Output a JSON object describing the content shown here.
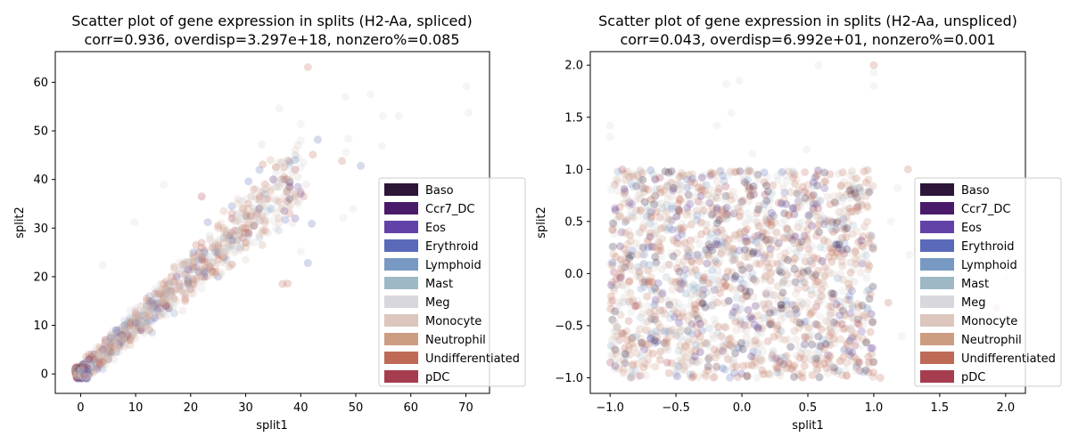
{
  "chart_data": [
    {
      "type": "scatter",
      "title_line1": "Scatter plot of gene expression in splits (H2-Aa, spliced)",
      "title_line2": "corr=0.936, overdisp=3.297e+18, nonzero%=0.085",
      "xlabel": "split1",
      "ylabel": "split2",
      "xlim": [
        -4.6,
        74.3
      ],
      "ylim": [
        -4.0,
        66.3
      ],
      "xticks": [
        0,
        10,
        20,
        30,
        40,
        50,
        60,
        70
      ],
      "yticks": [
        0,
        10,
        20,
        30,
        40,
        50,
        60
      ],
      "tick_labels_x": [
        "0",
        "10",
        "20",
        "30",
        "40",
        "50",
        "60",
        "70"
      ],
      "tick_labels_y": [
        "0",
        "10",
        "20",
        "30",
        "40",
        "50",
        "60"
      ],
      "grid": false,
      "legend_placement": "right",
      "point_alpha": 0.25,
      "pattern": "diagonal-cloud",
      "points": [
        [
          41.3,
          63.1,
          9
        ],
        [
          70.1,
          59.2,
          6
        ],
        [
          52.7,
          57.5,
          6
        ],
        [
          48.1,
          57.0,
          6
        ],
        [
          54.9,
          53.1,
          6
        ],
        [
          57.8,
          53.1,
          6
        ],
        [
          70.5,
          53.7,
          6
        ],
        [
          36.1,
          54.6,
          6
        ],
        [
          43.1,
          48.2,
          3
        ],
        [
          50.9,
          42.8,
          3
        ],
        [
          41.3,
          22.8,
          3
        ],
        [
          42.0,
          30.9,
          3
        ],
        [
          37.2,
          31.7,
          3
        ],
        [
          30.5,
          39.6,
          3
        ],
        [
          23.1,
          31.2,
          3
        ],
        [
          32.9,
          47.2,
          7
        ],
        [
          37.8,
          43.9,
          9
        ],
        [
          42.2,
          45.1,
          9
        ],
        [
          33.1,
          43.1,
          9
        ],
        [
          47.5,
          43.8,
          9
        ],
        [
          54.8,
          46.9,
          6
        ],
        [
          48.2,
          45.6,
          6
        ],
        [
          48.7,
          48.4,
          6
        ],
        [
          40.0,
          51.4,
          6
        ],
        [
          40.0,
          25.2,
          6
        ],
        [
          49.5,
          34.0,
          6
        ],
        [
          47.7,
          32.1,
          6
        ],
        [
          37.6,
          18.6,
          9
        ],
        [
          36.7,
          18.5,
          9
        ],
        [
          15.1,
          38.9,
          6
        ],
        [
          9.8,
          31.2,
          6
        ],
        [
          22.0,
          36.5,
          10
        ],
        [
          4.0,
          22.3,
          6
        ]
      ],
      "cloud": {
        "n": 1100,
        "x_max": 40,
        "slope": 1.02,
        "spread": 3.6,
        "seed": 11
      },
      "zero_cluster": {
        "n": 160,
        "x_range": [
          -1.0,
          1.3
        ],
        "y_range": [
          -1.0,
          1.4
        ],
        "seed": 5
      }
    },
    {
      "type": "scatter",
      "title_line1": "Scatter plot of gene expression in splits (H2-Aa, unspliced)",
      "title_line2": "corr=0.043, overdisp=6.992e+01, nonzero%=0.001",
      "xlabel": "split1",
      "ylabel": "split2",
      "xlim": [
        -1.15,
        2.15
      ],
      "ylim": [
        -1.15,
        2.13
      ],
      "xticks": [
        -1.0,
        -0.5,
        0.0,
        0.5,
        1.0,
        1.5,
        2.0
      ],
      "yticks": [
        -1.0,
        -0.5,
        0.0,
        0.5,
        1.0,
        1.5,
        2.0
      ],
      "tick_labels_x": [
        "−1.0",
        "−0.5",
        "0.0",
        "0.5",
        "1.0",
        "1.5",
        "2.0"
      ],
      "tick_labels_y": [
        "−1.0",
        "−0.5",
        "0.0",
        "0.5",
        "1.0",
        "1.5",
        "2.0"
      ],
      "grid": false,
      "legend_placement": "right",
      "point_alpha": 0.25,
      "pattern": "uniform-square",
      "points": [
        [
          -1.0,
          1.42,
          6
        ],
        [
          -1.0,
          1.31,
          6
        ],
        [
          -0.12,
          1.82,
          6
        ],
        [
          -0.02,
          1.85,
          6
        ],
        [
          -0.08,
          1.54,
          6
        ],
        [
          -0.19,
          1.42,
          6
        ],
        [
          0.58,
          2.0,
          6
        ],
        [
          1.0,
          2.0,
          9
        ],
        [
          1.0,
          1.93,
          6
        ],
        [
          1.0,
          1.8,
          6
        ],
        [
          0.08,
          1.15,
          6
        ],
        [
          0.49,
          1.19,
          6
        ],
        [
          1.26,
          1.0,
          9
        ],
        [
          1.18,
          0.82,
          6
        ],
        [
          1.13,
          0.5,
          6
        ],
        [
          1.33,
          0.22,
          6
        ],
        [
          1.27,
          0.18,
          6
        ],
        [
          1.11,
          -0.28,
          9
        ],
        [
          1.84,
          -1.0,
          6
        ],
        [
          2.0,
          -0.04,
          6
        ],
        [
          1.93,
          -0.33,
          9
        ],
        [
          1.21,
          -0.6,
          6
        ],
        [
          1.05,
          -1.0,
          9
        ]
      ],
      "cloud": {
        "n": 1700,
        "x_range": [
          -1.0,
          1.0
        ],
        "y_range": [
          -1.0,
          1.0
        ],
        "seed": 23
      }
    }
  ],
  "legend": {
    "items": [
      {
        "label": "Baso",
        "color": "#2d1638"
      },
      {
        "label": "Ccr7_DC",
        "color": "#4a1a6a"
      },
      {
        "label": "Eos",
        "color": "#6342a8"
      },
      {
        "label": "Erythroid",
        "color": "#5a6ab8"
      },
      {
        "label": "Lymphoid",
        "color": "#7899c2"
      },
      {
        "label": "Mast",
        "color": "#9fb8c6"
      },
      {
        "label": "Meg",
        "color": "#d8d7dd"
      },
      {
        "label": "Monocyte",
        "color": "#dcc6bd"
      },
      {
        "label": "Neutrophil",
        "color": "#cd9d82"
      },
      {
        "label": "Undifferentiated",
        "color": "#be6a56"
      },
      {
        "label": "pDC",
        "color": "#a53d4e"
      }
    ]
  }
}
